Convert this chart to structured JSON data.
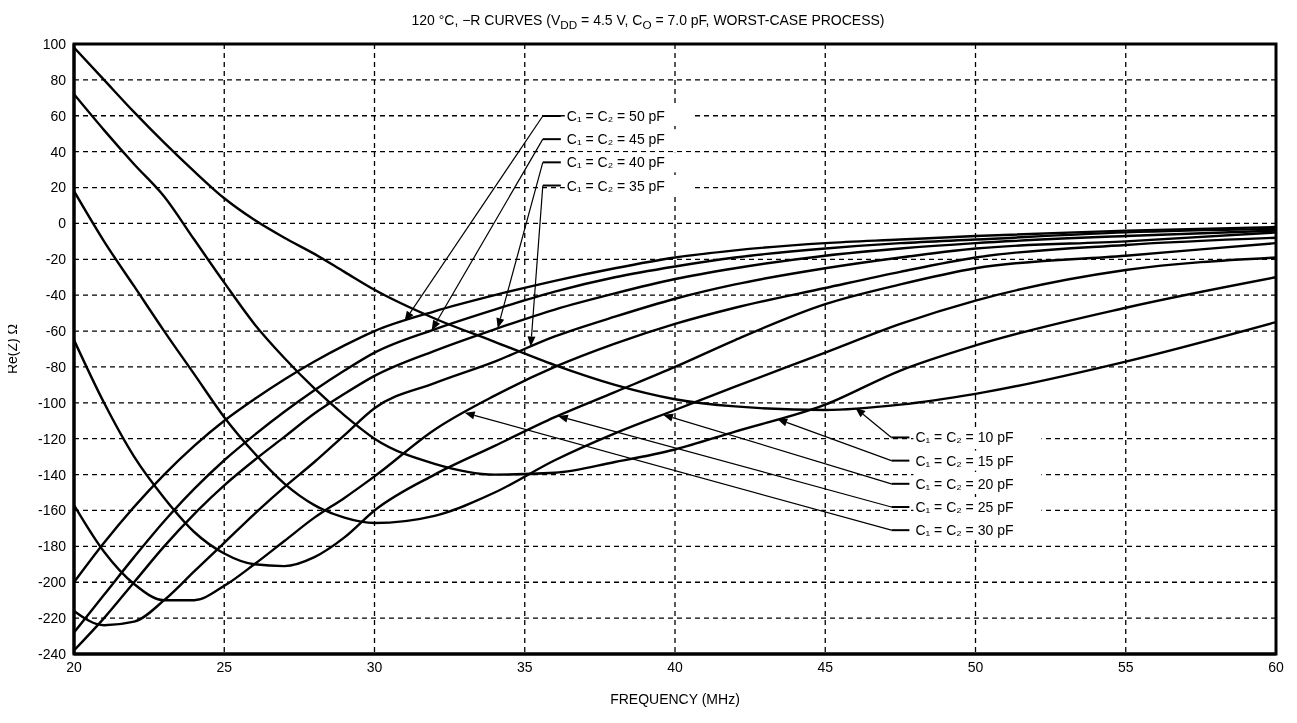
{
  "chart_data": {
    "type": "line",
    "title": "120 °C, −R CURVES (V$_{DD}$ = 4.5 V, C$_{O}$ = 7.0 pF, WORST-CASE PROCESS)",
    "xlabel": "FREQUENCY (MHz)",
    "ylabel": "Re(Z) Ω",
    "x": [
      20,
      21,
      22,
      23,
      24,
      25,
      26,
      27,
      28,
      29,
      30,
      32,
      34,
      36,
      38,
      40,
      42,
      45,
      47.5,
      50,
      55,
      60
    ],
    "series": [
      {
        "name": "C₁ = C₂ = 10 pF",
        "color": "#000000",
        "values": [
          98,
          80,
          62,
          45,
          29,
          14,
          2,
          -8,
          -17,
          -27,
          -37,
          -53,
          -66,
          -79,
          -90,
          -98,
          -102,
          -104,
          -101,
          -95,
          -77,
          -55
        ]
      },
      {
        "name": "C₁ = C₂ = 15 pF",
        "color": "#000000",
        "values": [
          72,
          52,
          33,
          15,
          -9,
          -33,
          -56,
          -75,
          -92,
          -107,
          -120,
          -134,
          -140,
          -139,
          -133,
          -126,
          -116,
          -101,
          -82,
          -68,
          -47,
          -30
        ]
      },
      {
        "name": "C₁ = C₂ = 20 pF",
        "color": "#000000",
        "values": [
          18,
          -10,
          -35,
          -60,
          -84,
          -108,
          -128,
          -145,
          -157,
          -164,
          -167,
          -163,
          -150,
          -132,
          -117,
          -104,
          -91,
          -72,
          -56,
          -43,
          -26,
          -19
        ]
      },
      {
        "name": "C₁ = C₂ = 25 pF",
        "color": "#000000",
        "values": [
          -65,
          -100,
          -130,
          -153,
          -172,
          -184,
          -190,
          -191,
          -186,
          -175,
          -160,
          -140,
          -124,
          -108,
          -94,
          -80,
          -65,
          -45,
          -34,
          -25,
          -18,
          -11
        ]
      },
      {
        "name": "C₁ = C₂ = 30 pF",
        "color": "#000000",
        "values": [
          -157,
          -183,
          -201,
          -210,
          -210,
          -202,
          -190,
          -177,
          -164,
          -153,
          -141,
          -115,
          -96,
          -80,
          -67,
          -56,
          -47,
          -36,
          -27,
          -19,
          -12,
          -8
        ]
      },
      {
        "name": "C₁ = C₂ = 35 pF",
        "color": "#000000",
        "values": [
          -216,
          -224,
          -222,
          -210,
          -194,
          -178,
          -162,
          -147,
          -133,
          -118,
          -103,
          -89,
          -77,
          -63,
          -52,
          -42,
          -34,
          -25,
          -19,
          -14,
          -10,
          -5
        ]
      },
      {
        "name": "C₁ = C₂ = 40 pF",
        "color": "#000000",
        "values": [
          -238,
          -220,
          -200,
          -180,
          -162,
          -146,
          -132,
          -119,
          -106,
          -95,
          -85,
          -71,
          -59,
          -48,
          -39,
          -31,
          -25,
          -18,
          -14,
          -11,
          -7,
          -4
        ]
      },
      {
        "name": "C₁ = C₂ = 45 pF",
        "color": "#000000",
        "values": [
          -228,
          -207,
          -186,
          -166,
          -148,
          -132,
          -118,
          -105,
          -93,
          -82,
          -72,
          -59,
          -48,
          -38,
          -30,
          -24,
          -19,
          -14,
          -11,
          -9,
          -5,
          -3
        ]
      },
      {
        "name": "C₁ = C₂ = 50 pF",
        "color": "#000000",
        "values": [
          -200,
          -178,
          -158,
          -140,
          -124,
          -110,
          -98,
          -87,
          -77,
          -68,
          -60,
          -49,
          -40,
          -32,
          -25,
          -19,
          -15,
          -11,
          -9,
          -7,
          -4,
          -2
        ]
      }
    ],
    "xlim": [
      20,
      60
    ],
    "xticks": [
      20,
      25,
      30,
      35,
      40,
      45,
      50,
      55,
      60
    ],
    "ylim": [
      -240,
      100
    ],
    "yticks": [
      -240,
      -220,
      -200,
      -180,
      -160,
      -140,
      -120,
      -100,
      -80,
      -60,
      -40,
      -20,
      0,
      20,
      40,
      60,
      80,
      100
    ],
    "grid": true,
    "marker": "none",
    "line_style": "solid",
    "legend": "right"
  }
}
